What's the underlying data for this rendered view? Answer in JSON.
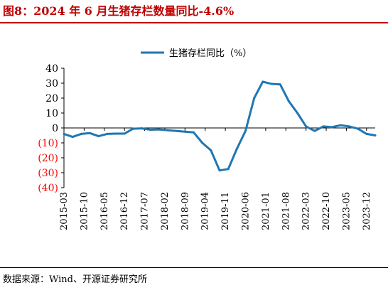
{
  "title": "图8：2024 年 6 月生猪存栏数量同比-4.6%",
  "source": "数据来源：Wind、开源证券研究所",
  "colors": {
    "title": "#c00000",
    "line": "#1f77b4",
    "negative_tick": "#ff0000",
    "axis": "#000000"
  },
  "chart_data": {
    "type": "line",
    "legend_position": "top",
    "grid": false,
    "ylim": [
      -40,
      40
    ],
    "yticks": [
      {
        "value": 40,
        "label": "40"
      },
      {
        "value": 30,
        "label": "30"
      },
      {
        "value": 20,
        "label": "20"
      },
      {
        "value": 10,
        "label": "10"
      },
      {
        "value": 0,
        "label": "0"
      },
      {
        "value": -10,
        "label": "(10)"
      },
      {
        "value": -20,
        "label": "(20)"
      },
      {
        "value": -30,
        "label": "(30)"
      },
      {
        "value": -40,
        "label": "(40)"
      }
    ],
    "xticks": [
      "2015-03",
      "2015-10",
      "2016-05",
      "2016-12",
      "2017-07",
      "2018-02",
      "2018-09",
      "2019-04",
      "2019-11",
      "2020-06",
      "2021-01",
      "2021-08",
      "2022-03",
      "2022-10",
      "2023-05",
      "2023-12"
    ],
    "series": [
      {
        "name": "生猪存栏同比（%）",
        "color": "#1f77b4",
        "points": [
          {
            "x": "2015-03",
            "y": -4
          },
          {
            "x": "2015-06",
            "y": -6
          },
          {
            "x": "2015-09",
            "y": -4
          },
          {
            "x": "2015-12",
            "y": -3.5
          },
          {
            "x": "2016-03",
            "y": -5.5
          },
          {
            "x": "2016-06",
            "y": -4
          },
          {
            "x": "2016-09",
            "y": -3.8
          },
          {
            "x": "2016-12",
            "y": -3.8
          },
          {
            "x": "2017-03",
            "y": -0.5
          },
          {
            "x": "2017-06",
            "y": -0.3
          },
          {
            "x": "2017-09",
            "y": -1.2
          },
          {
            "x": "2017-12",
            "y": -1
          },
          {
            "x": "2018-03",
            "y": -1.5
          },
          {
            "x": "2018-06",
            "y": -2
          },
          {
            "x": "2018-09",
            "y": -2.5
          },
          {
            "x": "2018-12",
            "y": -3
          },
          {
            "x": "2019-03",
            "y": -10
          },
          {
            "x": "2019-06",
            "y": -15
          },
          {
            "x": "2019-09",
            "y": -28.5
          },
          {
            "x": "2019-12",
            "y": -27.5
          },
          {
            "x": "2020-03",
            "y": -14
          },
          {
            "x": "2020-06",
            "y": -2
          },
          {
            "x": "2020-09",
            "y": 20
          },
          {
            "x": "2020-12",
            "y": 31
          },
          {
            "x": "2021-03",
            "y": 29.5
          },
          {
            "x": "2021-06",
            "y": 29.2
          },
          {
            "x": "2021-09",
            "y": 18
          },
          {
            "x": "2021-12",
            "y": 10
          },
          {
            "x": "2022-03",
            "y": 1
          },
          {
            "x": "2022-06",
            "y": -2
          },
          {
            "x": "2022-09",
            "y": 1
          },
          {
            "x": "2022-12",
            "y": 0.5
          },
          {
            "x": "2023-03",
            "y": 1.8
          },
          {
            "x": "2023-06",
            "y": 1
          },
          {
            "x": "2023-09",
            "y": -0.5
          },
          {
            "x": "2023-12",
            "y": -4
          },
          {
            "x": "2024-03",
            "y": -5
          }
        ]
      }
    ]
  }
}
